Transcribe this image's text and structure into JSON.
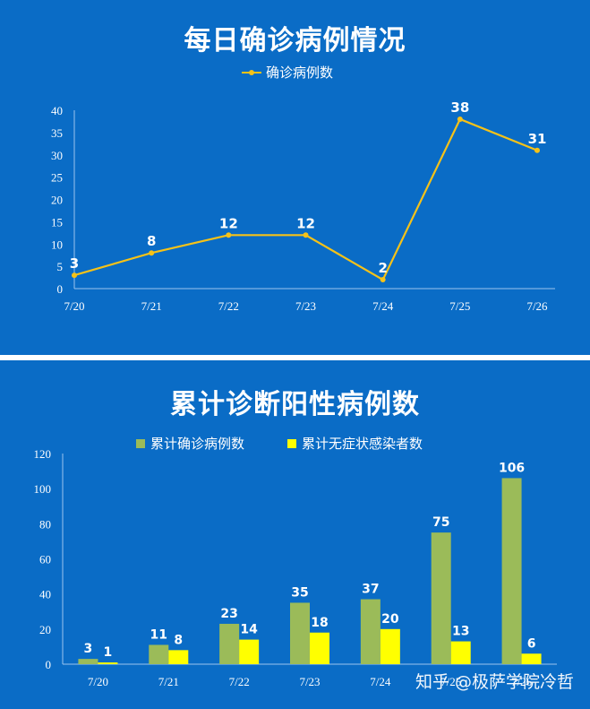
{
  "watermark": "知乎 @极萨学院冷哲",
  "colors": {
    "panel_bg": "#0a6cc6",
    "axis": "#9cc5ee",
    "line": "#f6c218",
    "bar_confirmed": "#9bbb59",
    "bar_asymptomatic": "#ffff00",
    "text": "#ffffff"
  },
  "chart_data": [
    {
      "type": "line",
      "title": "每日确诊病例情况",
      "legend": [
        "确诊病例数"
      ],
      "categories": [
        "7/20",
        "7/21",
        "7/22",
        "7/23",
        "7/24",
        "7/25",
        "7/26"
      ],
      "series": [
        {
          "name": "确诊病例数",
          "values": [
            3,
            8,
            12,
            12,
            2,
            38,
            31
          ]
        }
      ],
      "ylim": [
        0,
        40
      ],
      "yticks": [
        0,
        5,
        10,
        15,
        20,
        25,
        30,
        35,
        40
      ],
      "grid": false,
      "legend_position": "top"
    },
    {
      "type": "bar",
      "title": "累计诊断阳性病例数",
      "legend": [
        "累计确诊病例数",
        "累计无症状感染者数"
      ],
      "categories": [
        "7/20",
        "7/21",
        "7/22",
        "7/23",
        "7/24",
        "7/25",
        "7/26"
      ],
      "series": [
        {
          "name": "累计确诊病例数",
          "values": [
            3,
            11,
            23,
            35,
            37,
            75,
            106
          ]
        },
        {
          "name": "累计无症状感染者数",
          "values": [
            1,
            8,
            14,
            18,
            20,
            13,
            6
          ]
        }
      ],
      "ylim": [
        0,
        120
      ],
      "yticks": [
        0,
        20,
        40,
        60,
        80,
        100,
        120
      ],
      "grid": false,
      "legend_position": "top"
    }
  ]
}
